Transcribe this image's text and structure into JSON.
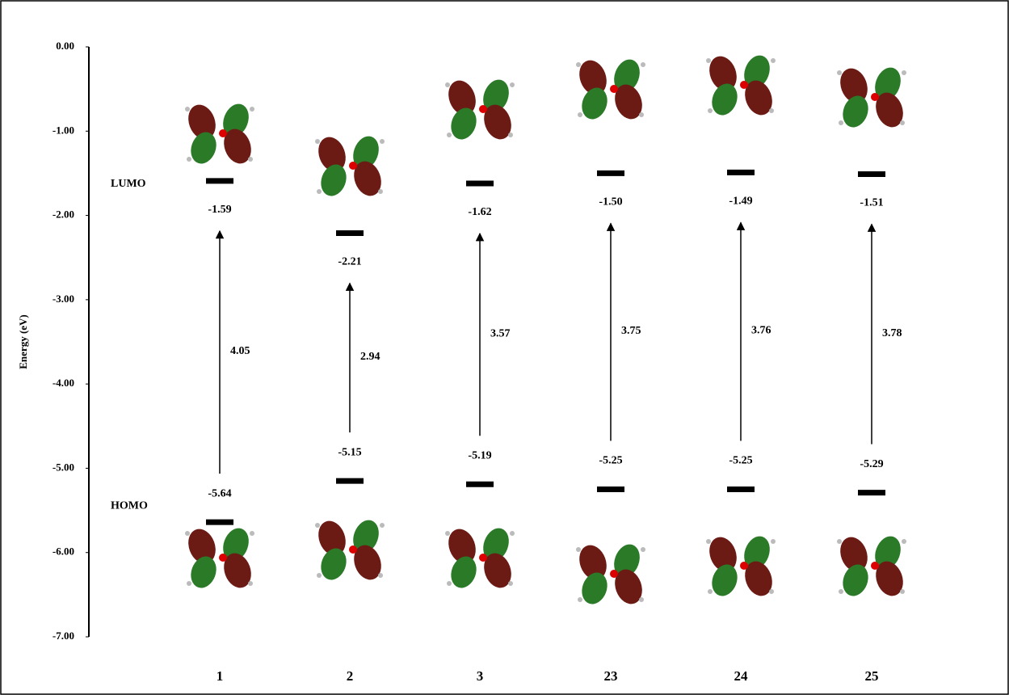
{
  "chart_data": {
    "type": "energy-levels",
    "y_label": "Energy (eV)",
    "categories": [
      "1",
      "2",
      "3",
      "23",
      "24",
      "25"
    ],
    "series": [
      {
        "name": "LUMO",
        "color": "#000000",
        "values": [
          -1.59,
          -2.21,
          -1.62,
          -1.5,
          -1.49,
          -1.51
        ],
        "value_labels": [
          "-1.59",
          "-2.21",
          "-1.62",
          "-1.50",
          "-1.49",
          "-1.51"
        ]
      },
      {
        "name": "HOMO",
        "color": "#000000",
        "values": [
          -5.64,
          -5.15,
          -5.19,
          -5.25,
          -5.25,
          -5.29
        ],
        "value_labels": [
          "-5.64",
          "-5.15",
          "-5.19",
          "-5.25",
          "-5.25",
          "-5.29"
        ]
      }
    ],
    "gaps": {
      "color": "#e00000",
      "values": [
        4.05,
        2.94,
        3.57,
        3.75,
        3.76,
        3.78
      ]
    },
    "ylim": [
      -7,
      0
    ],
    "yticks": [
      {
        "value": 0,
        "label": "0.00"
      },
      {
        "value": -1,
        "label": "-1.00"
      },
      {
        "value": -2,
        "label": "-2.00"
      },
      {
        "value": -3,
        "label": "-3.00"
      },
      {
        "value": -4,
        "label": "-4.00"
      },
      {
        "value": -5,
        "label": "-5.00"
      },
      {
        "value": -6,
        "label": "-6.00"
      },
      {
        "value": -7,
        "label": "-7.00"
      }
    ]
  }
}
